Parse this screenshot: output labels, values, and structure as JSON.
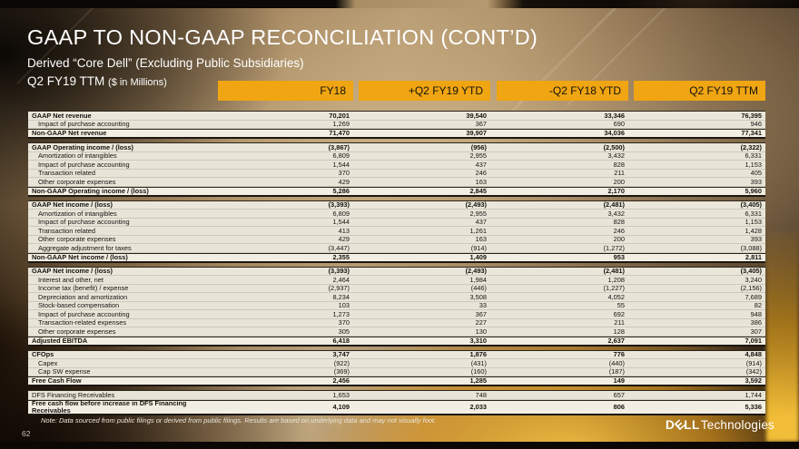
{
  "slide": {
    "title": "GAAP TO NON-GAAP RECONCILIATION (CONT’D)",
    "subtitle1": "Derived “Core Dell” (Excluding Public Subsidiaries)",
    "subtitle2_main": "Q2 FY19 TTM ",
    "subtitle2_suffix": "($ in Millions)",
    "note": "Note:  Data sourced from public filings or derived from public filings.  Results are based on underlying data and may not visually foot.",
    "page_number": "62",
    "logo": {
      "d": "D",
      "e": "E",
      "ll": "LL",
      "technologies": "Technologies"
    },
    "accent_gold": "#F0A512"
  },
  "table": {
    "columns": [
      "FY18",
      "+Q2 FY19 YTD",
      "-Q2 FY18 YTD",
      "Q2 FY19 TTM"
    ],
    "column_keys": [
      "fy18",
      "q2fy19ytd",
      "q2fy18ytd",
      "q2fy19ttm"
    ],
    "sections": [
      {
        "rows": [
          {
            "label": "GAAP Net revenue",
            "style": "head",
            "values": [
              "70,201",
              "39,540",
              "33,346",
              "76,395"
            ]
          },
          {
            "label": "Impact of purchase accounting",
            "style": "item",
            "values": [
              "1,269",
              "367",
              "690",
              "946"
            ]
          },
          {
            "label": "Non-GAAP Net revenue",
            "style": "total",
            "values": [
              "71,470",
              "39,907",
              "34,036",
              "77,341"
            ]
          }
        ]
      },
      {
        "rows": [
          {
            "label": "GAAP Operating income / (loss)",
            "style": "head",
            "values": [
              "(3,867)",
              "(956)",
              "(2,500)",
              "(2,322)"
            ]
          },
          {
            "label": "Amortization of intangibles",
            "style": "item",
            "values": [
              "6,809",
              "2,955",
              "3,432",
              "6,331"
            ]
          },
          {
            "label": "Impact of purchase accounting",
            "style": "item",
            "values": [
              "1,544",
              "437",
              "828",
              "1,153"
            ]
          },
          {
            "label": "Transaction related",
            "style": "item",
            "values": [
              "370",
              "246",
              "211",
              "405"
            ]
          },
          {
            "label": "Other corporate expenses",
            "style": "item",
            "values": [
              "429",
              "163",
              "200",
              "393"
            ]
          },
          {
            "label": "Non-GAAP Operating income / (loss)",
            "style": "total",
            "values": [
              "5,286",
              "2,845",
              "2,170",
              "5,960"
            ]
          }
        ]
      },
      {
        "rows": [
          {
            "label": "GAAP Net income / (loss)",
            "style": "head",
            "values": [
              "(3,393)",
              "(2,493)",
              "(2,481)",
              "(3,405)"
            ]
          },
          {
            "label": "Amortization of intangibles",
            "style": "item",
            "values": [
              "6,809",
              "2,955",
              "3,432",
              "6,331"
            ]
          },
          {
            "label": "Impact of purchase accounting",
            "style": "item",
            "values": [
              "1,544",
              "437",
              "828",
              "1,153"
            ]
          },
          {
            "label": "Transaction related",
            "style": "item",
            "values": [
              "413",
              "1,261",
              "246",
              "1,428"
            ]
          },
          {
            "label": "Other corporate expenses",
            "style": "item",
            "values": [
              "429",
              "163",
              "200",
              "393"
            ]
          },
          {
            "label": "Aggregate adjustment for taxes",
            "style": "item",
            "values": [
              "(3,447)",
              "(914)",
              "(1,272)",
              "(3,088)"
            ]
          },
          {
            "label": "Non-GAAP Net income / (loss)",
            "style": "total",
            "values": [
              "2,355",
              "1,409",
              "953",
              "2,811"
            ]
          }
        ]
      },
      {
        "rows": [
          {
            "label": "GAAP Net income / (loss)",
            "style": "head",
            "values": [
              "(3,393)",
              "(2,493)",
              "(2,481)",
              "(3,405)"
            ]
          },
          {
            "label": "Interest and other, net",
            "style": "item",
            "values": [
              "2,464",
              "1,984",
              "1,208",
              "3,240"
            ]
          },
          {
            "label": "Income tax (benefit) / expense",
            "style": "item",
            "values": [
              "(2,937)",
              "(446)",
              "(1,227)",
              "(2,156)"
            ]
          },
          {
            "label": "Depreciation and amortization",
            "style": "item",
            "values": [
              "8,234",
              "3,508",
              "4,052",
              "7,689"
            ]
          },
          {
            "label": "Stock-based compensation",
            "style": "item",
            "values": [
              "103",
              "33",
              "55",
              "82"
            ]
          },
          {
            "label": "Impact of purchase accounting",
            "style": "item",
            "values": [
              "1,273",
              "367",
              "692",
              "948"
            ]
          },
          {
            "label": "Transaction-related expenses",
            "style": "item",
            "values": [
              "370",
              "227",
              "211",
              "386"
            ]
          },
          {
            "label": "Other corporate expenses",
            "style": "item",
            "values": [
              "305",
              "130",
              "128",
              "307"
            ]
          },
          {
            "label": "Adjusted EBITDA",
            "style": "total",
            "values": [
              "6,418",
              "3,310",
              "2,637",
              "7,091"
            ]
          }
        ]
      },
      {
        "rows": [
          {
            "label": "CFOps",
            "style": "head",
            "values": [
              "3,747",
              "1,876",
              "776",
              "4,848"
            ]
          },
          {
            "label": "Capex",
            "style": "item",
            "values": [
              "(922)",
              "(431)",
              "(440)",
              "(914)"
            ]
          },
          {
            "label": "Cap SW expense",
            "style": "item",
            "values": [
              "(369)",
              "(160)",
              "(187)",
              "(342)"
            ]
          },
          {
            "label": "Free Cash Flow",
            "style": "total",
            "values": [
              "2,456",
              "1,285",
              "149",
              "3,592"
            ]
          }
        ]
      },
      {
        "rows": [
          {
            "label": "DFS Financing Receivables",
            "style": "plain",
            "values": [
              "1,653",
              "748",
              "657",
              "1,744"
            ]
          },
          {
            "label": "Free cash flow before increase in DFS  Financing Receivables",
            "style": "grand",
            "values": [
              "4,109",
              "2,033",
              "806",
              "5,336"
            ]
          }
        ]
      }
    ]
  }
}
